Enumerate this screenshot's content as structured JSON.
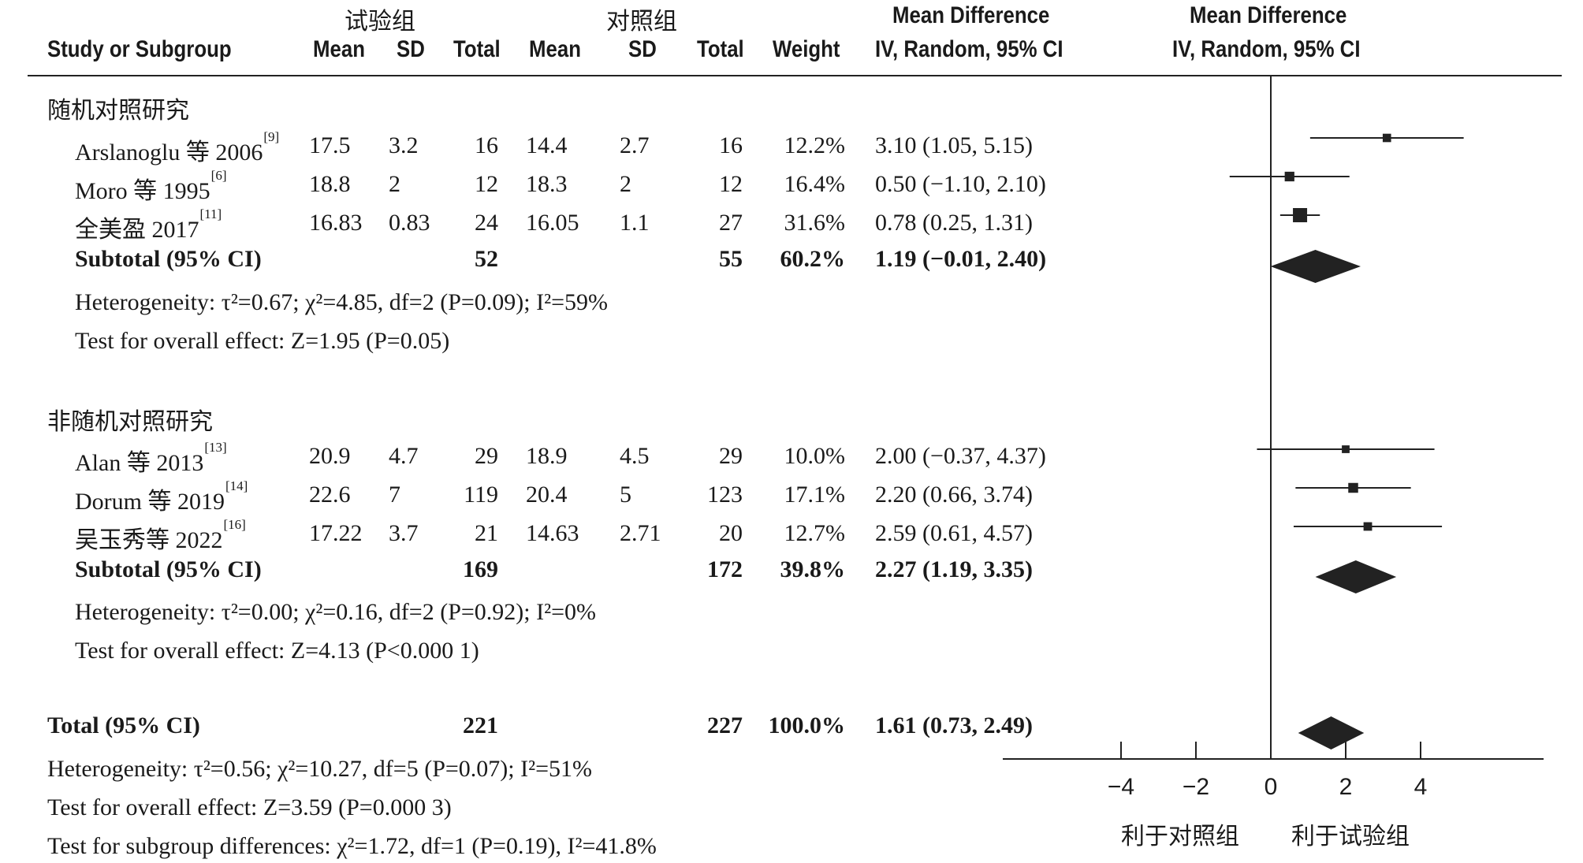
{
  "header": {
    "group_exp": "试验组",
    "group_ctrl": "对照组",
    "col_study": "Study or Subgroup",
    "col_mean": "Mean",
    "col_sd": "SD",
    "col_total": "Total",
    "col_weight": "Weight",
    "col_md_title": "Mean Difference",
    "col_md_method": "IV, Random, 95% CI",
    "plot_title": "Mean Difference",
    "plot_method": "IV, Random, 95% CI"
  },
  "subgroups": [
    {
      "label": "随机对照研究",
      "studies": [
        {
          "name": "Arslanoglu 等 2006",
          "ref": "[9]",
          "exp_mean": "17.5",
          "exp_sd": "3.2",
          "exp_total": "16",
          "ctrl_mean": "14.4",
          "ctrl_sd": "2.7",
          "ctrl_total": "16",
          "weight": "12.2%",
          "ci_text": "3.10 (1.05, 5.15)"
        },
        {
          "name": "Moro 等 1995",
          "ref": "[6]",
          "exp_mean": "18.8",
          "exp_sd": "2",
          "exp_total": "12",
          "ctrl_mean": "18.3",
          "ctrl_sd": "2",
          "ctrl_total": "12",
          "weight": "16.4%",
          "ci_text": "0.50 (−1.10, 2.10)"
        },
        {
          "name": "全美盈 2017",
          "ref": "[11]",
          "exp_mean": "16.83",
          "exp_sd": "0.83",
          "exp_total": "24",
          "ctrl_mean": "16.05",
          "ctrl_sd": "1.1",
          "ctrl_total": "27",
          "weight": "31.6%",
          "ci_text": "0.78 (0.25, 1.31)"
        }
      ],
      "subtotal": {
        "label": "Subtotal (95% CI)",
        "exp_total": "52",
        "ctrl_total": "55",
        "weight": "60.2%",
        "ci_text": "1.19 (−0.01, 2.40)"
      },
      "heterogeneity": "Heterogeneity: τ²=0.67; χ²=4.85, df=2 (P=0.09); I²=59%",
      "overall": "Test for overall effect: Z=1.95 (P=0.05)"
    },
    {
      "label": "非随机对照研究",
      "studies": [
        {
          "name": "Alan 等 2013",
          "ref": "[13]",
          "exp_mean": "20.9",
          "exp_sd": "4.7",
          "exp_total": "29",
          "ctrl_mean": "18.9",
          "ctrl_sd": "4.5",
          "ctrl_total": "29",
          "weight": "10.0%",
          "ci_text": "2.00 (−0.37, 4.37)"
        },
        {
          "name": "Dorum 等 2019",
          "ref": "[14]",
          "exp_mean": "22.6",
          "exp_sd": "7",
          "exp_total": "119",
          "ctrl_mean": "20.4",
          "ctrl_sd": "5",
          "ctrl_total": "123",
          "weight": "17.1%",
          "ci_text": "2.20 (0.66, 3.74)"
        },
        {
          "name": "吴玉秀等 2022",
          "ref": "[16]",
          "exp_mean": "17.22",
          "exp_sd": "3.7",
          "exp_total": "21",
          "ctrl_mean": "14.63",
          "ctrl_sd": "2.71",
          "ctrl_total": "20",
          "weight": "12.7%",
          "ci_text": "2.59 (0.61, 4.57)"
        }
      ],
      "subtotal": {
        "label": "Subtotal (95% CI)",
        "exp_total": "169",
        "ctrl_total": "172",
        "weight": "39.8%",
        "ci_text": "2.27 (1.19, 3.35)"
      },
      "heterogeneity": "Heterogeneity: τ²=0.00; χ²=0.16, df=2 (P=0.92); I²=0%",
      "overall": "Test for overall effect: Z=4.13 (P<0.000 1)"
    }
  ],
  "total": {
    "label": "Total (95% CI)",
    "exp_total": "221",
    "ctrl_total": "227",
    "weight": "100.0%",
    "ci_text": "1.61 (0.73, 2.49)"
  },
  "footer": {
    "heterogeneity": "Heterogeneity: τ²=0.56; χ²=10.27, df=5 (P=0.07); I²=51%",
    "overall": "Test for overall effect: Z=3.59 (P=0.000 3)",
    "subgroup": "Test for subgroup differences: χ²=1.72, df=1 (P=0.19), I²=41.8%"
  },
  "axis": {
    "favours_left": "利于对照组",
    "favours_right": "利于试验组"
  },
  "chart_data": {
    "type": "forest",
    "title": "",
    "xlabel": "",
    "xlim": [
      -4,
      4
    ],
    "xticks": [
      -4,
      -2,
      0,
      2,
      4
    ],
    "xtick_labels": [
      "−4",
      "−2",
      "0",
      "2",
      "4"
    ],
    "studies": [
      {
        "name": "Arslanoglu 等 2006",
        "md": 3.1,
        "lo": 1.05,
        "hi": 5.15,
        "weight": 12.2
      },
      {
        "name": "Moro 等 1995",
        "md": 0.5,
        "lo": -1.1,
        "hi": 2.1,
        "weight": 16.4
      },
      {
        "name": "全美盈 2017",
        "md": 0.78,
        "lo": 0.25,
        "hi": 1.31,
        "weight": 31.6
      },
      {
        "name": "Alan 等 2013",
        "md": 2.0,
        "lo": -0.37,
        "hi": 4.37,
        "weight": 10.0
      },
      {
        "name": "Dorum 等 2019",
        "md": 2.2,
        "lo": 0.66,
        "hi": 3.74,
        "weight": 17.1
      },
      {
        "name": "吴玉秀等 2022",
        "md": 2.59,
        "lo": 0.61,
        "hi": 4.57,
        "weight": 12.7
      }
    ],
    "diamonds": [
      {
        "name": "Subtotal (95% CI) 随机对照研究",
        "md": 1.19,
        "lo": -0.01,
        "hi": 2.4
      },
      {
        "name": "Subtotal (95% CI) 非随机对照研究",
        "md": 2.27,
        "lo": 1.19,
        "hi": 3.35
      },
      {
        "name": "Total (95% CI)",
        "md": 1.61,
        "lo": 0.73,
        "hi": 2.49
      }
    ]
  }
}
